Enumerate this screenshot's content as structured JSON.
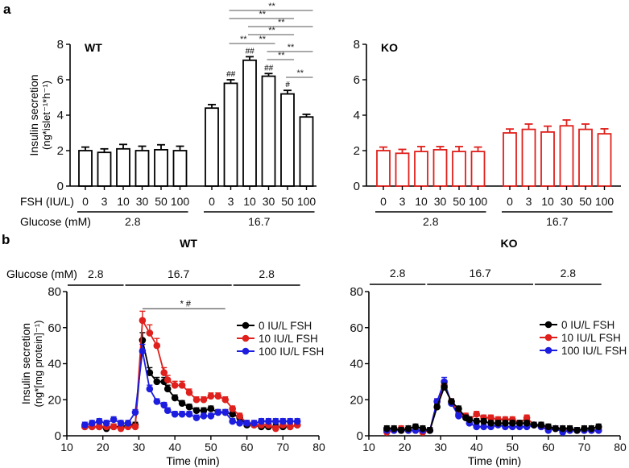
{
  "panels": {
    "a_label": "a",
    "b_label": "b"
  },
  "chart_data": [
    {
      "id": "a-wt",
      "type": "bar",
      "title": "WT",
      "ylabel_line1": "Insulin secretion",
      "ylabel_line2": "(ng*islet⁻¹*h⁻¹)",
      "ylim": [
        0,
        8
      ],
      "yticks": [
        0,
        2,
        4,
        6,
        8
      ],
      "xlabel_rows": [
        "FSH (IU/L)",
        "Glucose (mM)"
      ],
      "color": "#000000",
      "groups": [
        {
          "glucose": "2.8",
          "categories": [
            "0",
            "3",
            "10",
            "30",
            "50",
            "100"
          ],
          "values": [
            2.0,
            1.9,
            2.1,
            2.0,
            2.05,
            2.0
          ],
          "errors": [
            0.2,
            0.2,
            0.25,
            0.25,
            0.28,
            0.25
          ],
          "marks": [
            "",
            "",
            "",
            "",
            "",
            ""
          ]
        },
        {
          "glucose": "16.7",
          "categories": [
            "0",
            "3",
            "10",
            "30",
            "50",
            "100"
          ],
          "values": [
            4.4,
            5.8,
            7.1,
            6.2,
            5.2,
            3.9
          ],
          "errors": [
            0.2,
            0.2,
            0.2,
            0.15,
            0.2,
            0.15
          ],
          "marks": [
            "",
            "##",
            "##",
            "##",
            "#",
            ""
          ]
        }
      ],
      "significance": [
        {
          "from": 1,
          "to": 5,
          "label": "**"
        },
        {
          "from": 1,
          "to": 4,
          "label": "**"
        },
        {
          "from": 2,
          "to": 5,
          "label": "**"
        },
        {
          "from": 2,
          "to": 4,
          "label": "**"
        },
        {
          "from": 1,
          "to": 2,
          "label": "**"
        },
        {
          "from": 2,
          "to": 3,
          "label": "**"
        },
        {
          "from": 3,
          "to": 5,
          "label": "**"
        },
        {
          "from": 3,
          "to": 4,
          "label": "**"
        },
        {
          "from": 4,
          "to": 5,
          "label": "**"
        }
      ]
    },
    {
      "id": "a-ko",
      "type": "bar",
      "title": "KO",
      "ylim": [
        0,
        8
      ],
      "yticks": [
        0,
        2,
        4,
        6,
        8
      ],
      "color": "#e0201c",
      "groups": [
        {
          "glucose": "2.8",
          "categories": [
            "0",
            "3",
            "10",
            "30",
            "50",
            "100"
          ],
          "values": [
            2.0,
            1.85,
            1.95,
            2.05,
            1.95,
            1.95
          ],
          "errors": [
            0.2,
            0.22,
            0.28,
            0.18,
            0.28,
            0.25
          ]
        },
        {
          "glucose": "16.7",
          "categories": [
            "0",
            "3",
            "10",
            "30",
            "50",
            "100"
          ],
          "values": [
            3.0,
            3.2,
            3.05,
            3.4,
            3.2,
            2.95
          ],
          "errors": [
            0.22,
            0.3,
            0.33,
            0.33,
            0.3,
            0.28
          ]
        }
      ]
    },
    {
      "id": "b-wt",
      "type": "line",
      "title": "WT",
      "xlabel": "Time (min)",
      "ylabel_line1": "Insulin secretion",
      "ylabel_line2": "(ng*[mg protein]⁻¹)",
      "xlim": [
        10,
        80
      ],
      "ylim": [
        0,
        80
      ],
      "xticks": [
        10,
        20,
        30,
        40,
        50,
        60,
        70,
        80
      ],
      "yticks": [
        0,
        20,
        40,
        60,
        80
      ],
      "glucose_label": "Glucose (mM)",
      "glucose_segments": [
        {
          "from": 10,
          "to": 26,
          "label": "2.8"
        },
        {
          "from": 26,
          "to": 56,
          "label": "16.7"
        },
        {
          "from": 56,
          "to": 75,
          "label": "2.8"
        }
      ],
      "significance": {
        "from": 31,
        "to": 54,
        "label": "*  #"
      },
      "x": [
        15,
        17,
        19,
        21,
        23,
        25,
        27,
        29,
        31,
        33,
        35,
        37,
        38,
        40,
        42,
        44,
        46,
        48,
        50,
        52,
        54,
        56,
        58,
        60,
        62,
        64,
        66,
        68,
        70,
        72,
        74
      ],
      "series": [
        {
          "name": "0 IU/L FSH",
          "color": "#000000",
          "values": [
            5,
            5,
            5,
            4,
            5,
            5,
            6,
            6,
            53,
            35,
            30,
            30,
            26,
            21,
            18,
            16,
            14,
            14,
            15,
            13,
            13,
            12,
            10,
            6,
            6,
            5,
            5,
            5,
            5,
            5,
            6
          ]
        },
        {
          "name": "10 IU/L FSH",
          "color": "#e0201c",
          "values": [
            5,
            5,
            5,
            5,
            5,
            4,
            5,
            5,
            64,
            57,
            50,
            35,
            31,
            28,
            28,
            24,
            20,
            20,
            22,
            22,
            20,
            15,
            11,
            7,
            6,
            6,
            6,
            4,
            6,
            5,
            6
          ]
        },
        {
          "name": "100 IU/L FSH",
          "color": "#1d1de0",
          "values": [
            6,
            7,
            8,
            7,
            9,
            7,
            7,
            13,
            47,
            26,
            19,
            17,
            14,
            12,
            12,
            12,
            10,
            11,
            11,
            13,
            13,
            8,
            7,
            7,
            7,
            8,
            8,
            8,
            8,
            8,
            8
          ]
        }
      ]
    },
    {
      "id": "b-ko",
      "type": "line",
      "title": "KO",
      "xlabel": "Time (min)",
      "xlim": [
        10,
        80
      ],
      "ylim": [
        0,
        80
      ],
      "xticks": [
        10,
        20,
        30,
        40,
        50,
        60,
        70,
        80
      ],
      "yticks": [
        0,
        20,
        40,
        60,
        80
      ],
      "glucose_segments": [
        {
          "from": 10,
          "to": 26,
          "label": "2.8"
        },
        {
          "from": 26,
          "to": 56,
          "label": "16.7"
        },
        {
          "from": 56,
          "to": 75,
          "label": "2.8"
        }
      ],
      "x": [
        15,
        17,
        19,
        21,
        23,
        25,
        27,
        29,
        31,
        33,
        35,
        37,
        38,
        40,
        42,
        44,
        46,
        48,
        50,
        52,
        54,
        56,
        58,
        60,
        62,
        64,
        66,
        68,
        70,
        72,
        74
      ],
      "series": [
        {
          "name": "0 IU/L FSH",
          "color": "#000000",
          "values": [
            4,
            4,
            3,
            4,
            5,
            4,
            3,
            16,
            27,
            19,
            15,
            10,
            9,
            8,
            8,
            7,
            7,
            7,
            7,
            7,
            7,
            6,
            6,
            5,
            4,
            4,
            4,
            3,
            4,
            4,
            5
          ]
        },
        {
          "name": "10 IU/L FSH",
          "color": "#e0201c",
          "values": [
            2,
            3,
            4,
            3,
            3,
            2,
            3,
            19,
            28,
            19,
            12,
            11,
            9,
            12,
            10,
            10,
            9,
            9,
            9,
            7,
            10,
            6,
            5,
            4,
            4,
            3,
            3,
            3,
            3,
            3,
            3
          ]
        },
        {
          "name": "100 IU/L FSH",
          "color": "#1d1de0",
          "values": [
            3,
            3,
            3,
            3,
            3,
            3,
            3,
            19,
            30,
            18,
            11,
            10,
            7,
            5,
            5,
            5,
            6,
            5,
            5,
            5,
            5,
            6,
            5,
            3,
            4,
            2,
            3,
            3,
            3,
            3,
            3
          ]
        }
      ]
    }
  ]
}
